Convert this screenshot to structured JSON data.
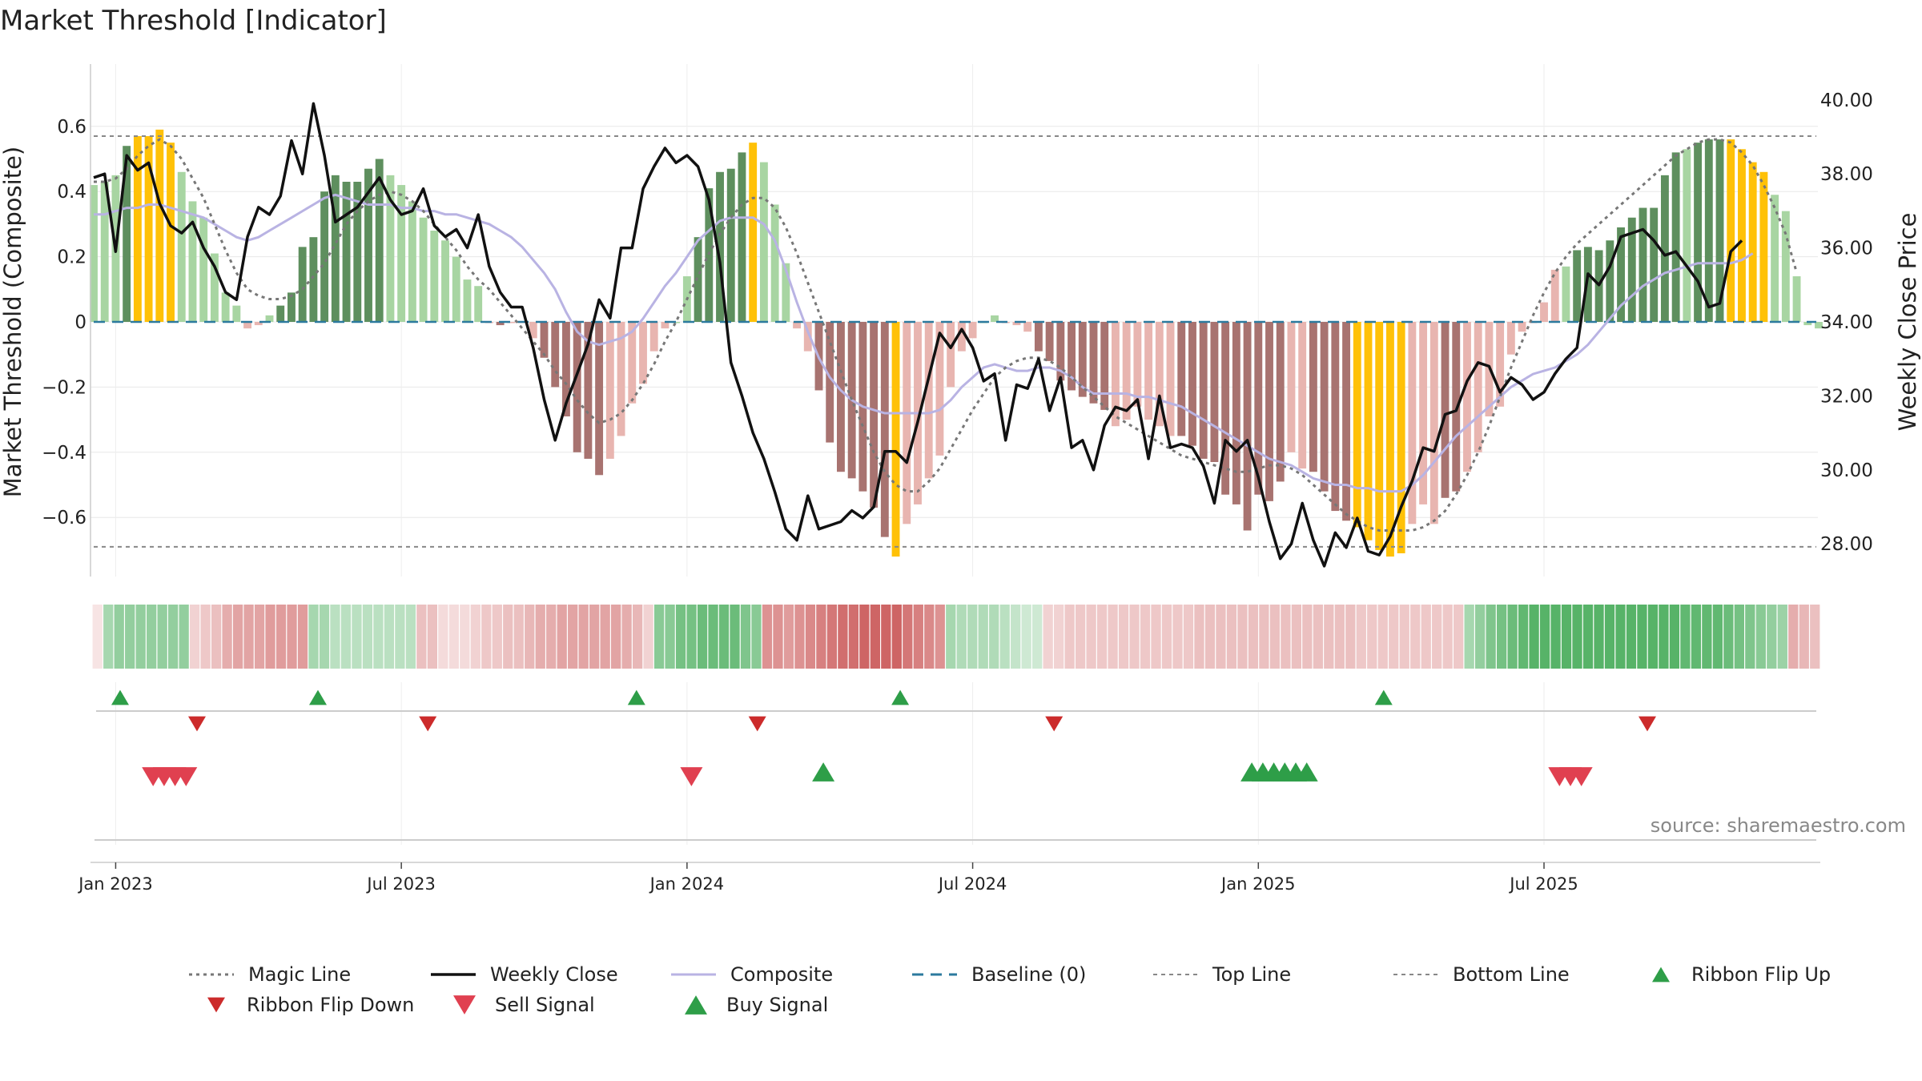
{
  "chart_data": {
    "type": "bar",
    "title": "Market Threshold [Indicator]",
    "ylabel": "Market Threshold (Composite)",
    "y2label": "Weekly Close Price",
    "ylim": [
      -0.78,
      0.78
    ],
    "y2lim": [
      26.0,
      40.5
    ],
    "yticks": [
      "0.6",
      "0.4",
      "0.2",
      "0",
      "−0.2",
      "−0.4",
      "−0.6"
    ],
    "yticks_values": [
      0.6,
      0.4,
      0.2,
      0,
      -0.2,
      -0.4,
      -0.6
    ],
    "y2ticks": [
      "40.00",
      "38.00",
      "36.00",
      "34.00",
      "32.00",
      "30.00",
      "28.00"
    ],
    "y2ticks_values": [
      40,
      38,
      36,
      34,
      32,
      30,
      28
    ],
    "xticks": [
      "Jan 2023",
      "Jul 2023",
      "Jan 2024",
      "Jul 2024",
      "Jan 2025",
      "Jul 2025"
    ],
    "xticks_weeks": [
      2,
      28,
      54,
      80,
      106,
      132
    ],
    "top_line": 0.57,
    "bottom_line": -0.69,
    "grid": true,
    "legend_placement": "bottom",
    "source": "source: sharemaestro.com",
    "colors": {
      "dark_green": "#5e8f5e",
      "light_green": "#a8d5a2",
      "dark_red": "#a87370",
      "light_red": "#e8b5b0",
      "gold": "#ffc107",
      "magic_line": "#777777",
      "weekly_close": "#111111",
      "composite": "#b9b3e3",
      "baseline": "#2c7a9e",
      "threshold": "#888888",
      "ribbon_up": "#2e9e48",
      "ribbon_down": "#cc2b2b",
      "sell_signal": "#e04050",
      "buy_signal": "#2e9e48"
    },
    "bars": [
      0.42,
      0.43,
      0.45,
      0.54,
      0.57,
      0.57,
      0.59,
      0.55,
      0.46,
      0.37,
      0.32,
      0.21,
      0.09,
      0.05,
      -0.02,
      -0.01,
      0.02,
      0.05,
      0.09,
      0.23,
      0.26,
      0.4,
      0.45,
      0.43,
      0.43,
      0.47,
      0.5,
      0.45,
      0.42,
      0.37,
      0.32,
      0.28,
      0.25,
      0.2,
      0.13,
      0.11,
      0.0,
      -0.01,
      0.0,
      0.0,
      -0.05,
      -0.11,
      -0.2,
      -0.29,
      -0.4,
      -0.42,
      -0.47,
      -0.42,
      -0.35,
      -0.25,
      -0.19,
      -0.09,
      -0.02,
      0.0,
      0.14,
      0.26,
      0.41,
      0.46,
      0.47,
      0.52,
      0.55,
      0.49,
      0.36,
      0.18,
      -0.02,
      -0.09,
      -0.21,
      -0.37,
      -0.46,
      -0.48,
      -0.52,
      -0.57,
      -0.66,
      -0.72,
      -0.62,
      -0.56,
      -0.48,
      -0.41,
      -0.2,
      -0.09,
      -0.05,
      0.0,
      0.02,
      0.0,
      -0.01,
      -0.03,
      -0.09,
      -0.12,
      -0.18,
      -0.21,
      -0.23,
      -0.25,
      -0.27,
      -0.32,
      -0.3,
      -0.26,
      -0.3,
      -0.32,
      -0.35,
      -0.35,
      -0.38,
      -0.42,
      -0.43,
      -0.53,
      -0.56,
      -0.64,
      -0.53,
      -0.55,
      -0.49,
      -0.4,
      -0.45,
      -0.46,
      -0.52,
      -0.58,
      -0.61,
      -0.63,
      -0.67,
      -0.7,
      -0.72,
      -0.71,
      -0.62,
      -0.56,
      -0.62,
      -0.54,
      -0.52,
      -0.46,
      -0.4,
      -0.29,
      -0.26,
      -0.1,
      -0.03,
      0.0,
      0.06,
      0.16,
      0.17,
      0.22,
      0.23,
      0.22,
      0.25,
      0.29,
      0.32,
      0.35,
      0.35,
      0.45,
      0.52,
      0.53,
      0.55,
      0.56,
      0.56,
      0.56,
      0.53,
      0.49,
      0.46,
      0.39,
      0.34,
      0.14,
      -0.01,
      -0.02
    ],
    "bar_colors": [
      "lg",
      "lg",
      "lg",
      "dg",
      "go",
      "go",
      "go",
      "go",
      "lg",
      "lg",
      "lg",
      "lg",
      "lg",
      "lg",
      "lr",
      "lr",
      "lg",
      "dg",
      "dg",
      "dg",
      "dg",
      "dg",
      "dg",
      "dg",
      "dg",
      "dg",
      "dg",
      "lg",
      "lg",
      "lg",
      "lg",
      "lg",
      "lg",
      "lg",
      "lg",
      "lg",
      "lr",
      "dr",
      "lr",
      "lr",
      "lr",
      "dr",
      "dr",
      "dr",
      "dr",
      "dr",
      "dr",
      "lr",
      "lr",
      "lr",
      "lr",
      "lr",
      "lr",
      "lg",
      "lg",
      "dg",
      "dg",
      "dg",
      "dg",
      "dg",
      "go",
      "lg",
      "lg",
      "lg",
      "lr",
      "lr",
      "dr",
      "dr",
      "dr",
      "dr",
      "dr",
      "dr",
      "dr",
      "go",
      "lr",
      "lr",
      "lr",
      "lr",
      "lr",
      "lr",
      "lr",
      "lg",
      "lg",
      "lr",
      "lr",
      "lr",
      "dr",
      "dr",
      "dr",
      "dr",
      "dr",
      "dr",
      "dr",
      "lr",
      "lr",
      "lr",
      "lr",
      "lr",
      "lr",
      "dr",
      "dr",
      "dr",
      "dr",
      "dr",
      "dr",
      "dr",
      "dr",
      "dr",
      "dr",
      "lr",
      "lr",
      "dr",
      "dr",
      "dr",
      "dr",
      "go",
      "go",
      "go",
      "go",
      "go",
      "lr",
      "lr",
      "lr",
      "dr",
      "dr",
      "lr",
      "lr",
      "lr",
      "lr",
      "lr",
      "lr",
      "lr",
      "lr",
      "lr",
      "lg",
      "dg",
      "dg",
      "dg",
      "dg",
      "dg",
      "dg",
      "dg",
      "dg",
      "dg",
      "dg",
      "lg",
      "dg",
      "dg",
      "dg",
      "go",
      "go",
      "go",
      "go",
      "lg",
      "lg",
      "lg",
      "lg",
      "lg",
      "lg",
      "lr",
      "lr"
    ],
    "series": [
      {
        "name": "Magic Line",
        "axis": "left",
        "values": [
          0.43,
          0.43,
          0.44,
          0.47,
          0.51,
          0.54,
          0.56,
          0.54,
          0.5,
          0.44,
          0.38,
          0.3,
          0.22,
          0.15,
          0.1,
          0.08,
          0.07,
          0.07,
          0.08,
          0.1,
          0.14,
          0.18,
          0.24,
          0.3,
          0.34,
          0.37,
          0.39,
          0.4,
          0.39,
          0.37,
          0.34,
          0.3,
          0.26,
          0.22,
          0.17,
          0.13,
          0.1,
          0.06,
          0.02,
          -0.02,
          -0.06,
          -0.1,
          -0.15,
          -0.19,
          -0.24,
          -0.28,
          -0.31,
          -0.3,
          -0.28,
          -0.24,
          -0.19,
          -0.13,
          -0.06,
          0.0,
          0.07,
          0.14,
          0.21,
          0.27,
          0.32,
          0.36,
          0.38,
          0.38,
          0.35,
          0.29,
          0.21,
          0.12,
          0.03,
          -0.06,
          -0.15,
          -0.24,
          -0.32,
          -0.4,
          -0.46,
          -0.5,
          -0.52,
          -0.52,
          -0.49,
          -0.45,
          -0.39,
          -0.33,
          -0.27,
          -0.22,
          -0.17,
          -0.14,
          -0.12,
          -0.11,
          -0.11,
          -0.12,
          -0.14,
          -0.17,
          -0.2,
          -0.23,
          -0.26,
          -0.29,
          -0.31,
          -0.33,
          -0.35,
          -0.37,
          -0.39,
          -0.41,
          -0.42,
          -0.43,
          -0.44,
          -0.45,
          -0.46,
          -0.46,
          -0.45,
          -0.44,
          -0.44,
          -0.45,
          -0.47,
          -0.5,
          -0.53,
          -0.56,
          -0.59,
          -0.61,
          -0.63,
          -0.64,
          -0.64,
          -0.64,
          -0.64,
          -0.63,
          -0.61,
          -0.58,
          -0.53,
          -0.47,
          -0.4,
          -0.32,
          -0.23,
          -0.14,
          -0.06,
          0.02,
          0.09,
          0.15,
          0.2,
          0.24,
          0.27,
          0.3,
          0.33,
          0.36,
          0.39,
          0.42,
          0.45,
          0.48,
          0.51,
          0.53,
          0.55,
          0.56,
          0.56,
          0.55,
          0.52,
          0.48,
          0.42,
          0.35,
          0.27,
          0.15
        ]
      },
      {
        "name": "Weekly Close",
        "axis": "right",
        "values": [
          37.9,
          38.0,
          35.9,
          38.5,
          38.1,
          38.3,
          37.2,
          36.6,
          36.4,
          36.7,
          36.0,
          35.5,
          34.8,
          34.6,
          36.3,
          37.1,
          36.9,
          37.4,
          38.9,
          38.0,
          39.9,
          38.5,
          36.7,
          36.9,
          37.1,
          37.5,
          37.9,
          37.3,
          36.9,
          37.0,
          37.6,
          36.6,
          36.3,
          36.5,
          36.0,
          36.9,
          35.5,
          34.8,
          34.4,
          34.4,
          33.3,
          31.9,
          30.8,
          31.8,
          32.6,
          33.4,
          34.6,
          34.1,
          36.0,
          36.0,
          37.6,
          38.2,
          38.7,
          38.3,
          38.5,
          38.2,
          37.3,
          35.6,
          32.9,
          32.0,
          31.0,
          30.3,
          29.4,
          28.4,
          28.1,
          29.3,
          28.4,
          28.5,
          28.6,
          28.9,
          28.7,
          29.0,
          30.5,
          30.5,
          30.2,
          31.3,
          32.5,
          33.7,
          33.3,
          33.8,
          33.3,
          32.4,
          32.6,
          30.8,
          32.3,
          32.2,
          33.0,
          31.6,
          32.5,
          30.6,
          30.8,
          30.0,
          31.2,
          31.7,
          31.6,
          31.9,
          30.3,
          32.0,
          30.6,
          30.7,
          30.6,
          30.1,
          29.1,
          30.8,
          30.5,
          30.8,
          29.8,
          28.6,
          27.6,
          28.0,
          29.1,
          28.1,
          27.4,
          28.3,
          27.9,
          28.7,
          27.8,
          27.7,
          28.2,
          29.0,
          29.7,
          30.6,
          30.5,
          31.5,
          31.6,
          32.4,
          32.9,
          32.8,
          32.1,
          32.5,
          32.3,
          31.9,
          32.1,
          32.6,
          33.0,
          33.3,
          35.3,
          35.0,
          35.5,
          36.3,
          36.4,
          36.5,
          36.2,
          35.8,
          35.9,
          35.5,
          35.1,
          34.4,
          34.5,
          35.9,
          36.2
        ]
      },
      {
        "name": "Composite",
        "axis": "left",
        "values": [
          0.33,
          0.33,
          0.34,
          0.35,
          0.35,
          0.36,
          0.36,
          0.35,
          0.34,
          0.33,
          0.32,
          0.3,
          0.28,
          0.26,
          0.25,
          0.26,
          0.28,
          0.3,
          0.32,
          0.34,
          0.36,
          0.38,
          0.39,
          0.38,
          0.37,
          0.36,
          0.36,
          0.36,
          0.35,
          0.35,
          0.34,
          0.34,
          0.33,
          0.33,
          0.32,
          0.31,
          0.3,
          0.28,
          0.26,
          0.23,
          0.19,
          0.15,
          0.1,
          0.03,
          -0.03,
          -0.06,
          -0.07,
          -0.06,
          -0.05,
          -0.03,
          0.01,
          0.06,
          0.11,
          0.15,
          0.2,
          0.25,
          0.28,
          0.31,
          0.32,
          0.32,
          0.32,
          0.3,
          0.25,
          0.16,
          0.06,
          -0.03,
          -0.11,
          -0.17,
          -0.21,
          -0.24,
          -0.26,
          -0.27,
          -0.28,
          -0.28,
          -0.28,
          -0.28,
          -0.28,
          -0.27,
          -0.24,
          -0.2,
          -0.17,
          -0.14,
          -0.13,
          -0.14,
          -0.15,
          -0.15,
          -0.14,
          -0.14,
          -0.15,
          -0.17,
          -0.2,
          -0.22,
          -0.22,
          -0.22,
          -0.22,
          -0.23,
          -0.23,
          -0.24,
          -0.25,
          -0.26,
          -0.28,
          -0.3,
          -0.32,
          -0.34,
          -0.36,
          -0.38,
          -0.4,
          -0.42,
          -0.43,
          -0.44,
          -0.46,
          -0.48,
          -0.49,
          -0.5,
          -0.5,
          -0.51,
          -0.51,
          -0.52,
          -0.52,
          -0.52,
          -0.5,
          -0.47,
          -0.43,
          -0.39,
          -0.35,
          -0.32,
          -0.29,
          -0.26,
          -0.23,
          -0.2,
          -0.18,
          -0.16,
          -0.15,
          -0.14,
          -0.12,
          -0.1,
          -0.07,
          -0.03,
          0.01,
          0.05,
          0.08,
          0.11,
          0.13,
          0.15,
          0.16,
          0.17,
          0.18,
          0.18,
          0.18,
          0.18,
          0.19,
          0.21
        ]
      }
    ],
    "ribbon": [
      0.15,
      0.45,
      0.55,
      0.55,
      0.55,
      0.55,
      0.55,
      0.55,
      0.55,
      0.25,
      0.3,
      0.35,
      0.45,
      0.5,
      0.5,
      0.5,
      0.55,
      0.55,
      0.55,
      0.55,
      0.45,
      0.45,
      0.35,
      0.35,
      0.35,
      0.35,
      0.35,
      0.35,
      0.35,
      0.35,
      0.35,
      0.35,
      0.2,
      0.2,
      0.2,
      0.25,
      0.3,
      0.3,
      0.35,
      0.35,
      0.4,
      0.45,
      0.45,
      0.5,
      0.5,
      0.5,
      0.5,
      0.5,
      0.5,
      0.45,
      0.4,
      0.25,
      0.6,
      0.6,
      0.7,
      0.7,
      0.75,
      0.75,
      0.75,
      0.75,
      0.65,
      0.6,
      0.6,
      0.6,
      0.55,
      0.6,
      0.65,
      0.7,
      0.75,
      0.8,
      0.8,
      0.85,
      0.85,
      0.85,
      0.85,
      0.75,
      0.7,
      0.65,
      0.6,
      0.45,
      0.4,
      0.4,
      0.4,
      0.4,
      0.35,
      0.3,
      0.25,
      0.25,
      0.25,
      0.25,
      0.3,
      0.3,
      0.3,
      0.3,
      0.3,
      0.3,
      0.3,
      0.3,
      0.3,
      0.3,
      0.3,
      0.3,
      0.35,
      0.35,
      0.35,
      0.35,
      0.35,
      0.35,
      0.35,
      0.35,
      0.35,
      0.35,
      0.35,
      0.35,
      0.35,
      0.35,
      0.35,
      0.3,
      0.3,
      0.3,
      0.3,
      0.3,
      0.3,
      0.3,
      0.3,
      0.3,
      0.3,
      0.45,
      0.55,
      0.65,
      0.7,
      0.75,
      0.8,
      0.85,
      0.85,
      0.85,
      0.85,
      0.85,
      0.85,
      0.85,
      0.85,
      0.85,
      0.85,
      0.85,
      0.85,
      0.85,
      0.85,
      0.8,
      0.8,
      0.8,
      0.8,
      0.75,
      0.7,
      0.65,
      0.6,
      0.55,
      0.5,
      0.45,
      0.4,
      0.35
    ],
    "ribbon_colors": [
      "r",
      "g",
      "g",
      "g",
      "g",
      "g",
      "g",
      "g",
      "g",
      "r",
      "r",
      "r",
      "r",
      "r",
      "r",
      "r",
      "r",
      "r",
      "r",
      "r",
      "g",
      "g",
      "g",
      "g",
      "g",
      "g",
      "g",
      "g",
      "g",
      "g",
      "r",
      "r",
      "r",
      "r",
      "r",
      "r",
      "r",
      "r",
      "r",
      "r",
      "r",
      "r",
      "r",
      "r",
      "r",
      "r",
      "r",
      "r",
      "r",
      "r",
      "r",
      "r",
      "g",
      "g",
      "g",
      "g",
      "g",
      "g",
      "g",
      "g",
      "g",
      "g",
      "r",
      "r",
      "r",
      "r",
      "r",
      "r",
      "r",
      "r",
      "r",
      "r",
      "r",
      "r",
      "r",
      "r",
      "r",
      "r",
      "r",
      "g",
      "g",
      "g",
      "g",
      "g",
      "g",
      "g",
      "g",
      "g",
      "r",
      "r",
      "r",
      "r",
      "r",
      "r",
      "r",
      "r",
      "r",
      "r",
      "r",
      "r",
      "r",
      "r",
      "r",
      "r",
      "r",
      "r",
      "r",
      "r",
      "r",
      "r",
      "r",
      "r",
      "r",
      "r",
      "r",
      "r",
      "r",
      "r",
      "r",
      "r",
      "r",
      "r",
      "r",
      "r",
      "r",
      "r",
      "r",
      "g",
      "g",
      "g",
      "g",
      "g",
      "g",
      "g",
      "g",
      "g",
      "g",
      "g",
      "g",
      "g",
      "g",
      "g",
      "g",
      "g",
      "g",
      "g",
      "g",
      "g",
      "g",
      "g",
      "g",
      "g",
      "g",
      "g",
      "g",
      "g",
      "g",
      "r",
      "r",
      "r",
      "r"
    ],
    "ribbon_flip_up_weeks": [
      0,
      18,
      47,
      71,
      115
    ],
    "ribbon_flip_down_weeks": [
      7,
      28,
      58,
      85,
      139
    ],
    "sell_signal_weeks": [
      3,
      4,
      5,
      6,
      52,
      131,
      132,
      133
    ],
    "buy_signal_weeks": [
      64,
      103,
      104,
      105,
      106,
      107,
      108
    ]
  },
  "legend": [
    {
      "key": "magic",
      "label": "Magic Line"
    },
    {
      "key": "close",
      "label": "Weekly Close"
    },
    {
      "key": "composite",
      "label": "Composite"
    },
    {
      "key": "baseline",
      "label": "Baseline (0)"
    },
    {
      "key": "top",
      "label": "Top Line"
    },
    {
      "key": "bottom",
      "label": "Bottom Line"
    },
    {
      "key": "flipup",
      "label": "Ribbon Flip Up"
    },
    {
      "key": "flipdown",
      "label": "Ribbon Flip Down"
    },
    {
      "key": "sell",
      "label": "Sell Signal"
    },
    {
      "key": "buy",
      "label": "Buy Signal"
    }
  ]
}
